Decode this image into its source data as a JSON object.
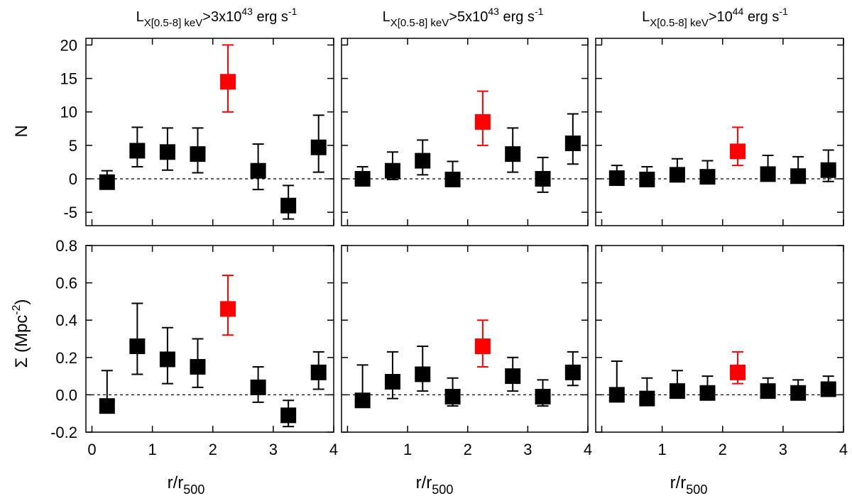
{
  "figure": {
    "x_label_main": "r/r",
    "x_label_sub": "500",
    "y_label_top": "N",
    "y_label_bottom_main": "Σ (Mpc",
    "y_label_bottom_sup": "-2",
    "y_label_bottom_end": ")"
  },
  "columns": [
    {
      "title_main": "L",
      "title_sub": "X[0.5-8] keV",
      "title_rest": ">3x10",
      "title_sup": "43",
      "title_unit": " erg s",
      "title_unit_sup": "-1"
    },
    {
      "title_main": "L",
      "title_sub": "X[0.5-8] keV",
      "title_rest": ">5x10",
      "title_sup": "43",
      "title_unit": " erg s",
      "title_unit_sup": "-1"
    },
    {
      "title_main": "L",
      "title_sub": "X[0.5-8] keV",
      "title_rest": ">10",
      "title_sup": "44",
      "title_unit": " erg s",
      "title_unit_sup": "-1"
    }
  ],
  "colors": {
    "normal": "#000000",
    "highlight": "#ff0000"
  },
  "chart_data": [
    {
      "id": "N-1",
      "type": "scatter",
      "title": "LX[0.5-8] keV>3x10^43 erg s^-1",
      "ylabel": "N",
      "xlim": [
        -0.1,
        4
      ],
      "ylim": [
        -7,
        21
      ],
      "yticks": [
        -5,
        0,
        5,
        10,
        15,
        20
      ],
      "ytick_labels": [
        "-5",
        "0",
        "5",
        "10",
        "15",
        "20"
      ],
      "xticks": [
        0,
        1,
        2,
        3,
        4
      ],
      "xtick_labels": [],
      "x": [
        0.25,
        0.75,
        1.25,
        1.75,
        2.25,
        2.75,
        3.25,
        3.75
      ],
      "y": [
        -0.5,
        4.2,
        4.0,
        3.7,
        14.5,
        1.2,
        -4.0,
        4.7
      ],
      "err_low": [
        -0.5,
        1.8,
        1.3,
        0.9,
        10.0,
        -1.6,
        -6.0,
        1.0
      ],
      "err_high": [
        1.2,
        7.7,
        7.6,
        7.6,
        20.0,
        5.2,
        -1.0,
        9.5
      ],
      "highlight": [
        false,
        false,
        false,
        false,
        true,
        false,
        false,
        false
      ]
    },
    {
      "id": "N-2",
      "type": "scatter",
      "title": "LX[0.5-8] keV>5x10^43 erg s^-1",
      "ylabel": "",
      "xlim": [
        -0.1,
        4
      ],
      "ylim": [
        -7,
        21
      ],
      "yticks": [
        -5,
        0,
        5,
        10,
        15,
        20
      ],
      "ytick_labels": [],
      "xticks": [
        0,
        1,
        2,
        3,
        4
      ],
      "xtick_labels": [],
      "x": [
        0.25,
        0.75,
        1.25,
        1.75,
        2.25,
        2.75,
        3.25,
        3.75
      ],
      "y": [
        0.0,
        1.2,
        2.7,
        -0.1,
        8.5,
        3.7,
        0.0,
        5.3
      ],
      "err_low": [
        -0.1,
        -0.1,
        0.6,
        -0.5,
        5.0,
        1.0,
        -2.0,
        2.2
      ],
      "err_high": [
        1.8,
        4.0,
        5.8,
        2.6,
        13.1,
        7.6,
        3.2,
        9.7
      ],
      "highlight": [
        false,
        false,
        false,
        false,
        true,
        false,
        false,
        false
      ]
    },
    {
      "id": "N-3",
      "type": "scatter",
      "title": "LX[0.5-8] keV>10^44 erg s^-1",
      "ylabel": "",
      "xlim": [
        -0.1,
        4
      ],
      "ylim": [
        -7,
        21
      ],
      "yticks": [
        -5,
        0,
        5,
        10,
        15,
        20
      ],
      "ytick_labels": [],
      "xticks": [
        0,
        1,
        2,
        3,
        4
      ],
      "xtick_labels": [],
      "x": [
        0.25,
        0.75,
        1.25,
        1.75,
        2.25,
        2.75,
        3.25,
        3.75
      ],
      "y": [
        0.1,
        -0.1,
        0.6,
        0.3,
        4.1,
        0.7,
        0.4,
        1.3
      ],
      "err_low": [
        -0.1,
        -0.2,
        0.0,
        0.0,
        2.0,
        0.0,
        0.0,
        -0.4
      ],
      "err_high": [
        2.0,
        1.8,
        3.0,
        2.7,
        7.7,
        3.5,
        3.3,
        4.3
      ],
      "highlight": [
        false,
        false,
        false,
        false,
        true,
        false,
        false,
        false
      ]
    },
    {
      "id": "S-1",
      "type": "scatter",
      "title": "",
      "ylabel": "Σ (Mpc^-2)",
      "xlim": [
        -0.1,
        4
      ],
      "ylim": [
        -0.2,
        0.8
      ],
      "yticks": [
        -0.2,
        0.0,
        0.2,
        0.4,
        0.6,
        0.8
      ],
      "ytick_labels": [
        "-0.2",
        "0.0",
        "0.2",
        "0.4",
        "0.6",
        "0.8"
      ],
      "xticks": [
        0,
        1,
        2,
        3,
        4
      ],
      "xtick_labels": [
        "0",
        "1",
        "2",
        "3",
        "4"
      ],
      "x": [
        0.25,
        0.75,
        1.25,
        1.75,
        2.25,
        2.75,
        3.25,
        3.75
      ],
      "y": [
        -0.06,
        0.26,
        0.19,
        0.15,
        0.46,
        0.04,
        -0.11,
        0.12
      ],
      "err_low": [
        -0.06,
        0.11,
        0.06,
        0.04,
        0.32,
        -0.04,
        -0.17,
        0.03
      ],
      "err_high": [
        0.13,
        0.49,
        0.36,
        0.3,
        0.64,
        0.15,
        -0.03,
        0.23
      ],
      "highlight": [
        false,
        false,
        false,
        false,
        true,
        false,
        false,
        false
      ]
    },
    {
      "id": "S-2",
      "type": "scatter",
      "title": "",
      "ylabel": "",
      "xlim": [
        -0.1,
        4
      ],
      "ylim": [
        -0.2,
        0.8
      ],
      "yticks": [
        -0.2,
        0.0,
        0.2,
        0.4,
        0.6,
        0.8
      ],
      "ytick_labels": [],
      "xticks": [
        0,
        1,
        2,
        3,
        4
      ],
      "xtick_labels": [
        "1",
        "2",
        "3",
        "4"
      ],
      "x": [
        0.25,
        0.75,
        1.25,
        1.75,
        2.25,
        2.75,
        3.25,
        3.75
      ],
      "y": [
        -0.03,
        0.07,
        0.11,
        -0.01,
        0.26,
        0.1,
        -0.01,
        0.12
      ],
      "err_low": [
        -0.03,
        -0.02,
        0.02,
        -0.06,
        0.15,
        0.02,
        -0.06,
        0.05
      ],
      "err_high": [
        0.16,
        0.23,
        0.26,
        0.09,
        0.4,
        0.2,
        0.08,
        0.23
      ],
      "highlight": [
        false,
        false,
        false,
        false,
        true,
        false,
        false,
        false
      ]
    },
    {
      "id": "S-3",
      "type": "scatter",
      "title": "",
      "ylabel": "",
      "xlim": [
        -0.1,
        4
      ],
      "ylim": [
        -0.2,
        0.8
      ],
      "yticks": [
        -0.2,
        0.0,
        0.2,
        0.4,
        0.6,
        0.8
      ],
      "ytick_labels": [],
      "xticks": [
        0,
        1,
        2,
        3,
        4
      ],
      "xtick_labels": [
        "1",
        "2",
        "3",
        "4"
      ],
      "x": [
        0.25,
        0.75,
        1.25,
        1.75,
        2.25,
        2.75,
        3.25,
        3.75
      ],
      "y": [
        0.0,
        -0.02,
        0.02,
        0.01,
        0.12,
        0.02,
        0.01,
        0.03
      ],
      "err_low": [
        -0.01,
        -0.03,
        -0.01,
        -0.01,
        0.06,
        -0.01,
        -0.01,
        0.0
      ],
      "err_high": [
        0.18,
        0.09,
        0.13,
        0.1,
        0.23,
        0.09,
        0.08,
        0.1
      ],
      "highlight": [
        false,
        false,
        false,
        false,
        true,
        false,
        false,
        false
      ]
    }
  ]
}
